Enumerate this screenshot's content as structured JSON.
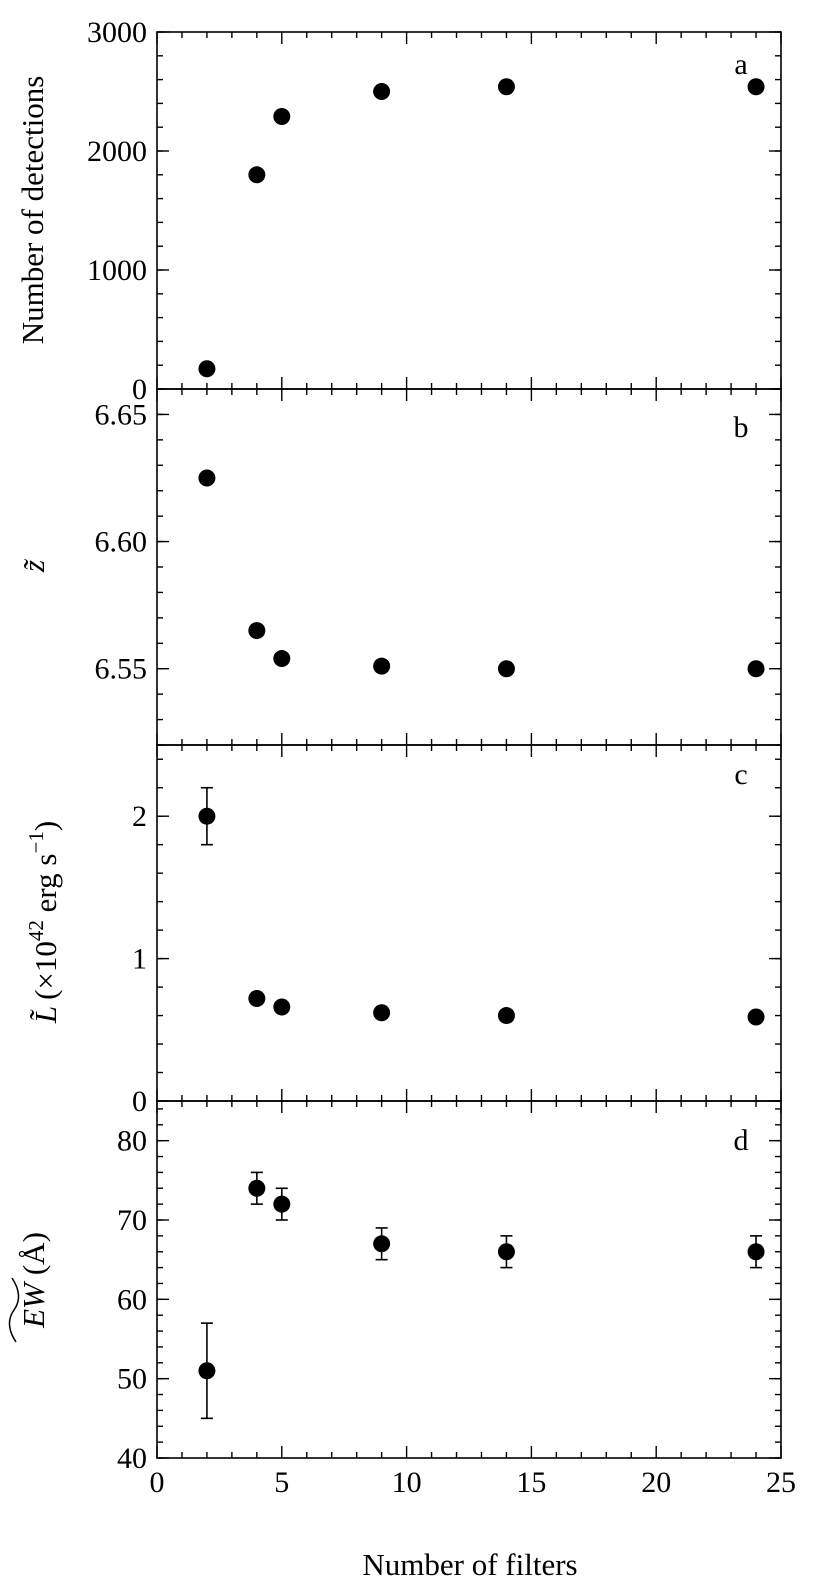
{
  "chart_data": [
    {
      "panel": "a",
      "type": "scatter",
      "xlabel": "Number of filters",
      "ylabel": "Number of detections",
      "xlim": [
        0,
        25
      ],
      "ylim": [
        0,
        3000
      ],
      "x_ticks": [
        "0",
        "5",
        "10",
        "15",
        "20",
        "25"
      ],
      "y_ticks": [
        "0",
        "1000",
        "2000",
        "3000"
      ],
      "series": [
        {
          "x": [
            2,
            4,
            5,
            9,
            14,
            24
          ],
          "y": [
            170,
            1800,
            2290,
            2500,
            2540,
            2540
          ]
        }
      ]
    },
    {
      "panel": "b",
      "type": "scatter",
      "ylabel": "z̃",
      "xlim": [
        0,
        25
      ],
      "ylim": [
        6.52,
        6.66
      ],
      "y_ticks": [
        "6.55",
        "6.60",
        "6.65"
      ],
      "series": [
        {
          "x": [
            2,
            4,
            5,
            9,
            14,
            24
          ],
          "y": [
            6.625,
            6.565,
            6.554,
            6.551,
            6.55,
            6.55
          ]
        }
      ]
    },
    {
      "panel": "c",
      "type": "scatter",
      "ylabel_main": "L̃",
      "ylabel_unit_prefix": "(×10",
      "ylabel_exp": "42",
      "ylabel_unit_mid": " erg s",
      "ylabel_exp2": "−1",
      "ylabel_unit_end": ")",
      "xlim": [
        0,
        25
      ],
      "ylim": [
        0,
        2.5
      ],
      "y_ticks": [
        "0",
        "1",
        "2"
      ],
      "series": [
        {
          "x": [
            2,
            4,
            5,
            9,
            14,
            24
          ],
          "y": [
            2.0,
            0.72,
            0.66,
            0.62,
            0.6,
            0.59
          ],
          "err": [
            0.2,
            0,
            0,
            0,
            0,
            0
          ]
        }
      ]
    },
    {
      "panel": "d",
      "type": "scatter",
      "ylabel_main": "EW",
      "ylabel_unit": "(Å)",
      "xlim": [
        0,
        25
      ],
      "ylim": [
        40,
        85
      ],
      "y_ticks": [
        "40",
        "50",
        "60",
        "70",
        "80"
      ],
      "series": [
        {
          "x": [
            2,
            4,
            5,
            9,
            14,
            24
          ],
          "y": [
            51,
            74,
            72,
            67,
            66,
            66
          ],
          "err": [
            6,
            2,
            2,
            2,
            2,
            2
          ]
        }
      ]
    }
  ]
}
